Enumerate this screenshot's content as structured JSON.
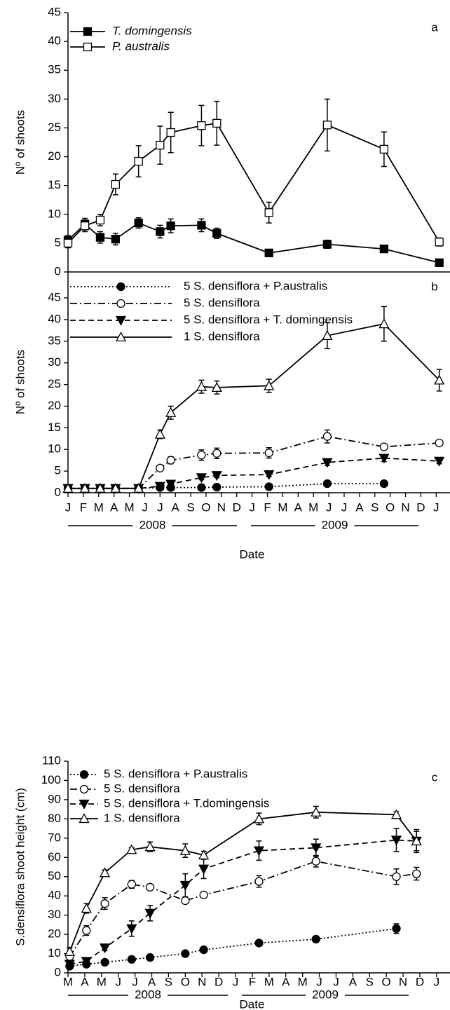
{
  "chart_data": [
    {
      "type": "line",
      "panel_label": "a",
      "ylabel": "Nº of shoots",
      "x": [
        0,
        1.1,
        2.1,
        3.1,
        4.6,
        6.0,
        6.7,
        8.7,
        9.7,
        13.1,
        16.9,
        20.6,
        24.2
      ],
      "xlim": [
        0,
        24.9
      ],
      "ylim": [
        0,
        45
      ],
      "yticks": [
        0,
        5,
        10,
        15,
        20,
        25,
        30,
        35,
        40,
        45
      ],
      "legend_italic": true,
      "series": [
        {
          "name": "T. domingensis",
          "color": "#000000",
          "marker": "square",
          "fill": "filled",
          "dash": "solid",
          "values": [
            5.5,
            8.3,
            6.0,
            5.7,
            8.5,
            7.0,
            8.0,
            8.1,
            6.7,
            3.3,
            4.8,
            4.0,
            1.6
          ],
          "errors": [
            0.8,
            1.0,
            1.0,
            1.0,
            0.9,
            1.1,
            1.2,
            1.1,
            0.9,
            0.5,
            0.7,
            0.6,
            0.4
          ]
        },
        {
          "name": "P. australis",
          "color": "#000000",
          "marker": "square",
          "fill": "open",
          "dash": "solid",
          "values": [
            5.0,
            8.0,
            9.0,
            15.2,
            19.2,
            22.0,
            24.2,
            25.4,
            25.8,
            10.3,
            25.5,
            21.3,
            5.2
          ],
          "errors": [
            0.8,
            1.0,
            1.0,
            1.8,
            2.7,
            3.3,
            3.5,
            3.5,
            3.8,
            1.8,
            4.5,
            3.0,
            0.7
          ]
        }
      ]
    },
    {
      "type": "line",
      "panel_label": "b",
      "ylabel": "Nº of shoots",
      "xlabel": "Date",
      "years": [
        "2008",
        "2009"
      ],
      "x": [
        0,
        1.1,
        2.1,
        3.1,
        4.6,
        6.0,
        6.7,
        8.7,
        9.7,
        13.1,
        16.9,
        20.6,
        24.2
      ],
      "xlim": [
        0,
        24.9
      ],
      "ylim": [
        0,
        51
      ],
      "yticks": [
        0,
        5,
        10,
        15,
        20,
        25,
        30,
        35,
        40,
        45
      ],
      "xticks": [
        {
          "value": 0,
          "label": "J"
        },
        {
          "value": 1,
          "label": "F"
        },
        {
          "value": 2,
          "label": "M"
        },
        {
          "value": 3,
          "label": "A"
        },
        {
          "value": 4,
          "label": "M"
        },
        {
          "value": 5,
          "label": "J"
        },
        {
          "value": 6,
          "label": "J"
        },
        {
          "value": 7,
          "label": "A"
        },
        {
          "value": 8,
          "label": "S"
        },
        {
          "value": 9,
          "label": "O"
        },
        {
          "value": 10,
          "label": "N"
        },
        {
          "value": 11,
          "label": "D"
        },
        {
          "value": 12,
          "label": "J"
        },
        {
          "value": 13,
          "label": "F"
        },
        {
          "value": 14,
          "label": "M"
        },
        {
          "value": 15,
          "label": "A"
        },
        {
          "value": 16,
          "label": "M"
        },
        {
          "value": 17,
          "label": "J"
        },
        {
          "value": 18,
          "label": "J"
        },
        {
          "value": 19,
          "label": "A"
        },
        {
          "value": 20,
          "label": "S"
        },
        {
          "value": 21,
          "label": "O"
        },
        {
          "value": 22,
          "label": "N"
        },
        {
          "value": 23,
          "label": "D"
        },
        {
          "value": 24,
          "label": "J"
        }
      ],
      "legend_italic": false,
      "series": [
        {
          "name": "5 S. densiflora + P.australis",
          "color": "#000000",
          "marker": "circle",
          "fill": "filled",
          "dash": "dotted",
          "values": [
            1,
            1,
            1,
            1,
            1,
            1.2,
            1.2,
            1.2,
            1.3,
            1.4,
            2.1,
            2.1,
            null
          ],
          "errors": [
            0.2,
            0.2,
            0.2,
            0.2,
            0.2,
            0.2,
            0.2,
            0.2,
            0.2,
            0.3,
            0.3,
            0.3,
            null
          ]
        },
        {
          "name": "5 S. densiflora",
          "color": "#000000",
          "marker": "circle",
          "fill": "open",
          "dash": "dashdot",
          "values": [
            1,
            1,
            1,
            1,
            1,
            5.7,
            7.5,
            8.7,
            9.1,
            9.2,
            13.0,
            10.6,
            11.5
          ],
          "errors": [
            0.2,
            0.2,
            0.2,
            0.2,
            0.2,
            0.6,
            0.8,
            1.2,
            1.2,
            1.2,
            1.5,
            0.5,
            0.5
          ]
        },
        {
          "name": "5 S. densiflora + T. domingensis",
          "color": "#000000",
          "marker": "triangle-down",
          "fill": "filled",
          "dash": "dashed",
          "values": [
            1,
            1,
            1,
            1,
            1,
            1.5,
            2.0,
            3.5,
            4.0,
            4.2,
            7.0,
            8.0,
            7.3
          ],
          "errors": [
            0.2,
            0.2,
            0.2,
            0.2,
            0.2,
            0.3,
            0.4,
            0.5,
            0.5,
            0.5,
            0.7,
            0.8,
            0.6
          ]
        },
        {
          "name": "1 S. densiflora",
          "color": "#000000",
          "marker": "triangle-up",
          "fill": "open",
          "dash": "solid",
          "values": [
            1,
            1,
            1,
            1,
            1,
            13.5,
            18.5,
            24.5,
            24.3,
            24.7,
            36.3,
            39.0,
            26.0
          ],
          "errors": [
            0.3,
            0.3,
            0.3,
            0.3,
            0.3,
            1.0,
            1.5,
            1.5,
            1.5,
            1.5,
            3.0,
            4.0,
            2.5
          ]
        }
      ]
    },
    {
      "type": "line",
      "panel_label": "c",
      "ylabel": "S.densiflora shoot height (cm)",
      "xlabel": "Date",
      "years": [
        "2008",
        "2009"
      ],
      "x": [
        0.1,
        1.1,
        2.2,
        3.8,
        4.9,
        7.0,
        8.1,
        11.4,
        14.8,
        19.6,
        20.8
      ],
      "xlim": [
        0,
        22.8
      ],
      "ylim": [
        0,
        110
      ],
      "yticks": [
        0,
        10,
        20,
        30,
        40,
        50,
        60,
        70,
        80,
        90,
        100,
        110
      ],
      "xticks": [
        {
          "value": 0,
          "label": "M"
        },
        {
          "value": 1,
          "label": "A"
        },
        {
          "value": 2,
          "label": "M"
        },
        {
          "value": 3,
          "label": "J"
        },
        {
          "value": 4,
          "label": "J"
        },
        {
          "value": 5,
          "label": "A"
        },
        {
          "value": 6,
          "label": "S"
        },
        {
          "value": 7,
          "label": "O"
        },
        {
          "value": 8,
          "label": "N"
        },
        {
          "value": 9,
          "label": "D"
        },
        {
          "value": 10,
          "label": "J"
        },
        {
          "value": 11,
          "label": "F"
        },
        {
          "value": 12,
          "label": "M"
        },
        {
          "value": 13,
          "label": "A"
        },
        {
          "value": 14,
          "label": "M"
        },
        {
          "value": 15,
          "label": "J"
        },
        {
          "value": 16,
          "label": "J"
        },
        {
          "value": 17,
          "label": "A"
        },
        {
          "value": 18,
          "label": "S"
        },
        {
          "value": 19,
          "label": "O"
        },
        {
          "value": 20,
          "label": "N"
        },
        {
          "value": 21,
          "label": "D"
        },
        {
          "value": 22,
          "label": "J"
        }
      ],
      "legend_italic": false,
      "series": [
        {
          "name": "5 S. densiflora + P.australis",
          "color": "#000000",
          "marker": "circle",
          "fill": "filled",
          "dash": "dotted",
          "values": [
            3.5,
            4.5,
            5.5,
            7.0,
            8.0,
            10.0,
            12.0,
            15.5,
            17.5,
            23.0,
            null
          ],
          "errors": [
            0.5,
            0.5,
            0.5,
            0.5,
            0.5,
            0.8,
            1.0,
            1.5,
            1.5,
            2.5,
            null
          ]
        },
        {
          "name": "5 S. densiflora",
          "color": "#000000",
          "marker": "circle",
          "fill": "open",
          "dash": "dashdot",
          "values": [
            8.5,
            22.0,
            36.0,
            46.0,
            44.5,
            37.5,
            40.5,
            47.5,
            58.0,
            50.0,
            51.5
          ],
          "errors": [
            2.5,
            2.5,
            3.0,
            2.0,
            1.0,
            1.0,
            1.0,
            3.0,
            3.0,
            4.0,
            3.3
          ]
        },
        {
          "name": "5 S. densiflora + T.domingensis",
          "color": "#000000",
          "marker": "triangle-down",
          "fill": "filled",
          "dash": "dashed",
          "values": [
            4.5,
            6.0,
            13.0,
            23.0,
            31.0,
            45.5,
            54.0,
            63.5,
            65.0,
            69.0,
            68.5
          ],
          "errors": [
            0.5,
            1.0,
            1.5,
            4.0,
            4.0,
            6.0,
            5.0,
            5.0,
            4.5,
            6.0,
            6.0
          ]
        },
        {
          "name": "1 S. densiflora",
          "color": "#000000",
          "marker": "triangle-up",
          "fill": "open",
          "dash": "solid",
          "values": [
            11.0,
            33.5,
            52.0,
            64.0,
            65.5,
            63.5,
            61.2,
            80.0,
            83.5,
            82.2,
            68.5
          ],
          "errors": [
            2.0,
            2.5,
            1.5,
            1.0,
            2.5,
            3.5,
            2.0,
            3.0,
            3.0,
            1.5,
            5.0
          ]
        }
      ]
    }
  ]
}
